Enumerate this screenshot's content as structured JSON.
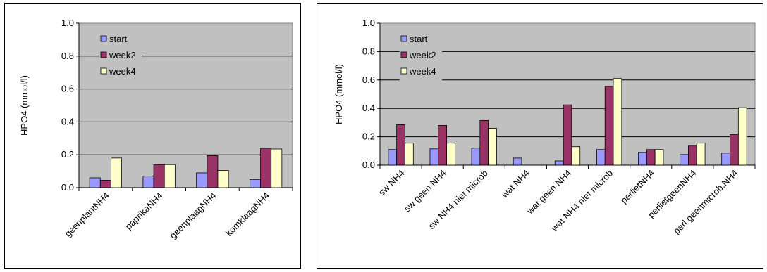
{
  "chart_data": [
    {
      "type": "bar",
      "categories": [
        "geenplantNH4",
        "paprikaNH4",
        "geenplaagNH4",
        "komklaagNH4"
      ],
      "series": [
        {
          "name": "start",
          "values": [
            0.06,
            0.07,
            0.09,
            0.05
          ]
        },
        {
          "name": "week2",
          "values": [
            0.045,
            0.14,
            0.195,
            0.24
          ]
        },
        {
          "name": "week4",
          "values": [
            0.18,
            0.14,
            0.105,
            0.235
          ]
        }
      ],
      "title": "",
      "xlabel": "",
      "ylabel": "HPO4 (mmol/l)",
      "ylim": [
        0,
        1.0
      ],
      "yticks": [
        "0.0",
        "0.2",
        "0.4",
        "0.6",
        "0.8",
        "1.0"
      ],
      "grid": true,
      "legend": "top-left inside plot area"
    },
    {
      "type": "bar",
      "categories": [
        "sw NH4",
        "sw geen NH4",
        "sw NH4 niet microb",
        "wat NH4",
        "wat geen NH4",
        "wat NH4 niet microb",
        "perlietNH4",
        "perlietgeenNH4",
        "perl geenmicrob.NH4"
      ],
      "series": [
        {
          "name": "start",
          "values": [
            0.11,
            0.115,
            0.12,
            0.05,
            0.03,
            0.11,
            0.09,
            0.075,
            0.085
          ]
        },
        {
          "name": "week2",
          "values": [
            0.285,
            0.28,
            0.315,
            0.0,
            0.425,
            0.555,
            0.11,
            0.135,
            0.215
          ]
        },
        {
          "name": "week4",
          "values": [
            0.155,
            0.155,
            0.26,
            0.0,
            0.13,
            0.61,
            0.11,
            0.155,
            0.405
          ]
        }
      ],
      "title": "",
      "xlabel": "",
      "ylabel": "HPO4 (mmol/l)",
      "ylim": [
        0,
        1.0
      ],
      "yticks": [
        "0.0",
        "0.2",
        "0.4",
        "0.6",
        "0.8",
        "1.0"
      ],
      "grid": true,
      "legend": "top-left inside plot area"
    }
  ],
  "colors": {
    "start": "#9999ff",
    "week2": "#993366",
    "week4": "#ffffcc",
    "plot_background": "#c0c0c0"
  }
}
